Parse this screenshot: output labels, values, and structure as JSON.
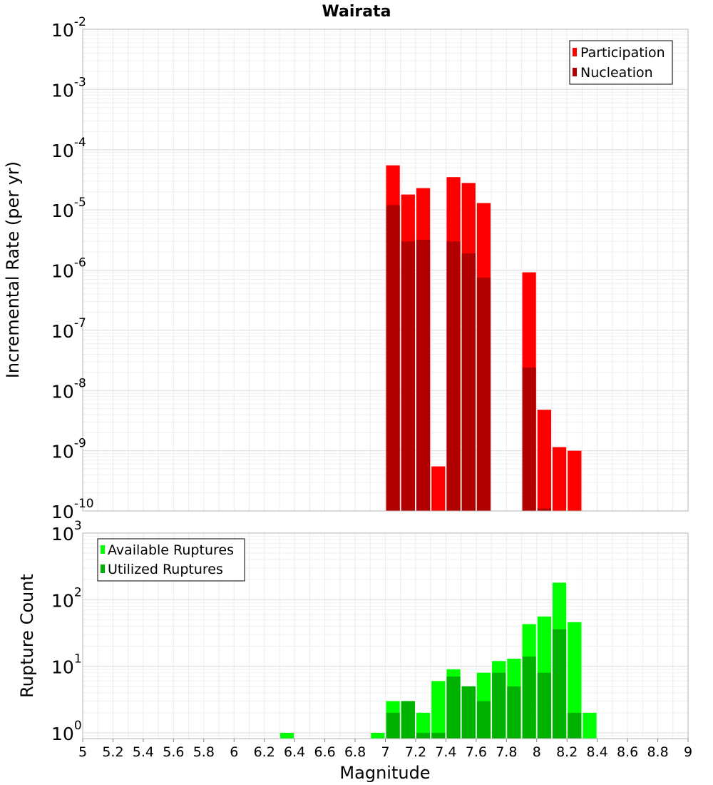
{
  "chart_data": [
    {
      "type": "bar",
      "title": "Wairata",
      "ylabel": "Incremental Rate (per yr)",
      "xlabel": "",
      "y_scale": "log",
      "ylim": [
        1e-10,
        0.01
      ],
      "xlim": [
        5,
        9
      ],
      "grid": true,
      "legend_position": "top-right",
      "y_tick_exponents": [
        "-10",
        "-9",
        "-8",
        "-7",
        "-6",
        "-5",
        "-4",
        "-3",
        "-2"
      ],
      "series": [
        {
          "name": "Participation",
          "color": "#ff0000",
          "points": [
            {
              "x": 7.05,
              "y": 5.5e-05
            },
            {
              "x": 7.15,
              "y": 1.8e-05
            },
            {
              "x": 7.25,
              "y": 2.3e-05
            },
            {
              "x": 7.35,
              "y": 5.5e-10
            },
            {
              "x": 7.45,
              "y": 3.5e-05
            },
            {
              "x": 7.55,
              "y": 2.8e-05
            },
            {
              "x": 7.65,
              "y": 1.3e-05
            },
            {
              "x": 7.95,
              "y": 9.2e-07
            },
            {
              "x": 8.05,
              "y": 4.8e-09
            },
            {
              "x": 8.15,
              "y": 1.15e-09
            },
            {
              "x": 8.25,
              "y": 1e-09
            }
          ]
        },
        {
          "name": "Nucleation",
          "color": "#b20000",
          "points": [
            {
              "x": 7.05,
              "y": 1.2e-05
            },
            {
              "x": 7.15,
              "y": 3e-06
            },
            {
              "x": 7.25,
              "y": 3.2e-06
            },
            {
              "x": 7.45,
              "y": 3e-06
            },
            {
              "x": 7.55,
              "y": 1.9e-06
            },
            {
              "x": 7.65,
              "y": 7.5e-07
            },
            {
              "x": 7.95,
              "y": 2.4e-08
            },
            {
              "x": 8.05,
              "y": 1.1e-10
            }
          ]
        }
      ]
    },
    {
      "type": "bar",
      "title": "",
      "ylabel": "Rupture Count",
      "xlabel": "Magnitude",
      "y_scale": "log",
      "ylim": [
        0.82,
        1000
      ],
      "xlim": [
        5,
        9
      ],
      "grid": true,
      "legend_position": "top-left",
      "x_ticks": [
        "5",
        "5.2",
        "5.4",
        "5.6",
        "5.8",
        "6",
        "6.2",
        "6.4",
        "6.6",
        "6.8",
        "7",
        "7.2",
        "7.4",
        "7.6",
        "7.8",
        "8",
        "8.2",
        "8.4",
        "8.6",
        "8.8",
        "9"
      ],
      "y_tick_exponents": [
        "0",
        "1",
        "2",
        "3"
      ],
      "series": [
        {
          "name": "Available Ruptures",
          "color": "#00ff00",
          "points": [
            {
              "x": 6.35,
              "y": 1
            },
            {
              "x": 6.95,
              "y": 1
            },
            {
              "x": 7.05,
              "y": 3
            },
            {
              "x": 7.15,
              "y": 3
            },
            {
              "x": 7.25,
              "y": 2
            },
            {
              "x": 7.35,
              "y": 6
            },
            {
              "x": 7.45,
              "y": 9
            },
            {
              "x": 7.55,
              "y": 5
            },
            {
              "x": 7.65,
              "y": 8
            },
            {
              "x": 7.75,
              "y": 12
            },
            {
              "x": 7.85,
              "y": 13
            },
            {
              "x": 7.95,
              "y": 43
            },
            {
              "x": 8.05,
              "y": 56
            },
            {
              "x": 8.15,
              "y": 180
            },
            {
              "x": 8.25,
              "y": 46
            },
            {
              "x": 8.35,
              "y": 2
            }
          ]
        },
        {
          "name": "Utilized Ruptures",
          "color": "#00b200",
          "points": [
            {
              "x": 7.05,
              "y": 2
            },
            {
              "x": 7.15,
              "y": 3
            },
            {
              "x": 7.25,
              "y": 1
            },
            {
              "x": 7.35,
              "y": 1
            },
            {
              "x": 7.45,
              "y": 7
            },
            {
              "x": 7.55,
              "y": 5
            },
            {
              "x": 7.65,
              "y": 3
            },
            {
              "x": 7.75,
              "y": 8
            },
            {
              "x": 7.85,
              "y": 5
            },
            {
              "x": 7.95,
              "y": 14
            },
            {
              "x": 8.05,
              "y": 8
            },
            {
              "x": 8.15,
              "y": 36
            },
            {
              "x": 8.25,
              "y": 2
            }
          ]
        }
      ]
    }
  ]
}
